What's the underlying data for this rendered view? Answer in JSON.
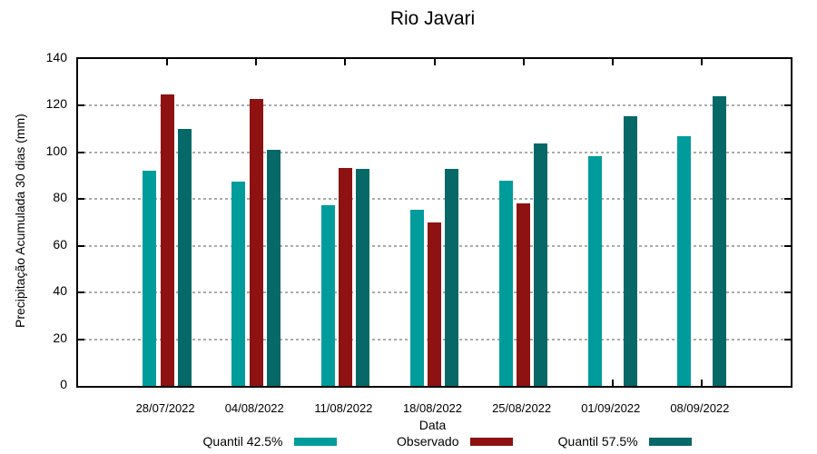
{
  "title": "Rio Javari",
  "chart_data": {
    "type": "bar",
    "title": "Rio Javari",
    "xlabel": "Data",
    "ylabel": "Precipitação Acumulada 30 dias (mm)",
    "ylim": [
      0,
      140
    ],
    "yticks": [
      0,
      20,
      40,
      60,
      80,
      100,
      120,
      140
    ],
    "grid": "horizontal-dotted",
    "gridline_color": "#ababab",
    "legend_position": "bottom",
    "background_color": "#ffffff",
    "axis_color": "#000000",
    "categories": [
      "28/07/2022",
      "04/08/2022",
      "11/08/2022",
      "18/08/2022",
      "25/08/2022",
      "01/09/2022",
      "08/09/2022"
    ],
    "series": [
      {
        "name": "Quantil 42.5%",
        "color": "#009C9C",
        "values": [
          92,
          87.5,
          77.5,
          75.5,
          88,
          98.5,
          107
        ]
      },
      {
        "name": "Observado",
        "color": "#8E1212",
        "values": [
          125,
          123,
          93.5,
          70,
          78,
          null,
          null
        ]
      },
      {
        "name": "Quantil 57.5%",
        "color": "#066867",
        "values": [
          110,
          101,
          93,
          93,
          104,
          115.5,
          124
        ]
      }
    ]
  }
}
